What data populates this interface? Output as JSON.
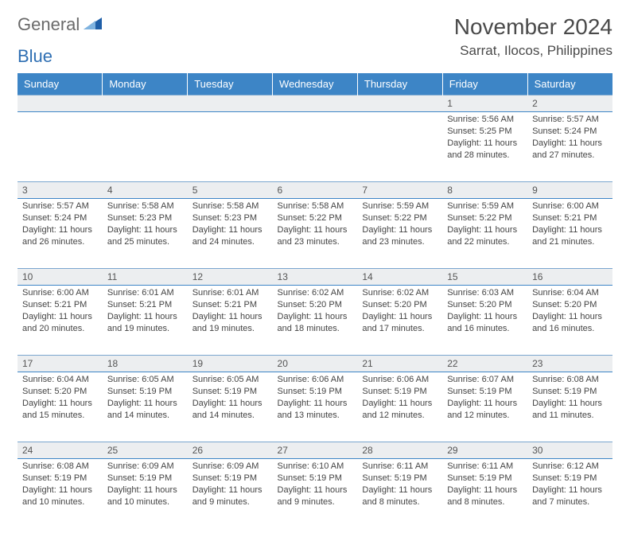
{
  "logo": {
    "word1": "General",
    "word2": "Blue"
  },
  "title": "November 2024",
  "location": "Sarrat, Ilocos, Philippines",
  "colors": {
    "header_bg": "#3d85c6",
    "header_text": "#ffffff",
    "daynum_bg": "#eceef0",
    "row_border": "#3d85c6",
    "logo_gray": "#6a6a6a",
    "logo_blue": "#2f6fb3",
    "logo_tri_light": "#7fb3e0",
    "logo_tri_dark": "#1f5fa8"
  },
  "day_headers": [
    "Sunday",
    "Monday",
    "Tuesday",
    "Wednesday",
    "Thursday",
    "Friday",
    "Saturday"
  ],
  "weeks": [
    [
      null,
      null,
      null,
      null,
      null,
      {
        "n": "1",
        "sr": "5:56 AM",
        "ss": "5:25 PM",
        "dl": "11 hours and 28 minutes."
      },
      {
        "n": "2",
        "sr": "5:57 AM",
        "ss": "5:24 PM",
        "dl": "11 hours and 27 minutes."
      }
    ],
    [
      {
        "n": "3",
        "sr": "5:57 AM",
        "ss": "5:24 PM",
        "dl": "11 hours and 26 minutes."
      },
      {
        "n": "4",
        "sr": "5:58 AM",
        "ss": "5:23 PM",
        "dl": "11 hours and 25 minutes."
      },
      {
        "n": "5",
        "sr": "5:58 AM",
        "ss": "5:23 PM",
        "dl": "11 hours and 24 minutes."
      },
      {
        "n": "6",
        "sr": "5:58 AM",
        "ss": "5:22 PM",
        "dl": "11 hours and 23 minutes."
      },
      {
        "n": "7",
        "sr": "5:59 AM",
        "ss": "5:22 PM",
        "dl": "11 hours and 23 minutes."
      },
      {
        "n": "8",
        "sr": "5:59 AM",
        "ss": "5:22 PM",
        "dl": "11 hours and 22 minutes."
      },
      {
        "n": "9",
        "sr": "6:00 AM",
        "ss": "5:21 PM",
        "dl": "11 hours and 21 minutes."
      }
    ],
    [
      {
        "n": "10",
        "sr": "6:00 AM",
        "ss": "5:21 PM",
        "dl": "11 hours and 20 minutes."
      },
      {
        "n": "11",
        "sr": "6:01 AM",
        "ss": "5:21 PM",
        "dl": "11 hours and 19 minutes."
      },
      {
        "n": "12",
        "sr": "6:01 AM",
        "ss": "5:21 PM",
        "dl": "11 hours and 19 minutes."
      },
      {
        "n": "13",
        "sr": "6:02 AM",
        "ss": "5:20 PM",
        "dl": "11 hours and 18 minutes."
      },
      {
        "n": "14",
        "sr": "6:02 AM",
        "ss": "5:20 PM",
        "dl": "11 hours and 17 minutes."
      },
      {
        "n": "15",
        "sr": "6:03 AM",
        "ss": "5:20 PM",
        "dl": "11 hours and 16 minutes."
      },
      {
        "n": "16",
        "sr": "6:04 AM",
        "ss": "5:20 PM",
        "dl": "11 hours and 16 minutes."
      }
    ],
    [
      {
        "n": "17",
        "sr": "6:04 AM",
        "ss": "5:20 PM",
        "dl": "11 hours and 15 minutes."
      },
      {
        "n": "18",
        "sr": "6:05 AM",
        "ss": "5:19 PM",
        "dl": "11 hours and 14 minutes."
      },
      {
        "n": "19",
        "sr": "6:05 AM",
        "ss": "5:19 PM",
        "dl": "11 hours and 14 minutes."
      },
      {
        "n": "20",
        "sr": "6:06 AM",
        "ss": "5:19 PM",
        "dl": "11 hours and 13 minutes."
      },
      {
        "n": "21",
        "sr": "6:06 AM",
        "ss": "5:19 PM",
        "dl": "11 hours and 12 minutes."
      },
      {
        "n": "22",
        "sr": "6:07 AM",
        "ss": "5:19 PM",
        "dl": "11 hours and 12 minutes."
      },
      {
        "n": "23",
        "sr": "6:08 AM",
        "ss": "5:19 PM",
        "dl": "11 hours and 11 minutes."
      }
    ],
    [
      {
        "n": "24",
        "sr": "6:08 AM",
        "ss": "5:19 PM",
        "dl": "11 hours and 10 minutes."
      },
      {
        "n": "25",
        "sr": "6:09 AM",
        "ss": "5:19 PM",
        "dl": "11 hours and 10 minutes."
      },
      {
        "n": "26",
        "sr": "6:09 AM",
        "ss": "5:19 PM",
        "dl": "11 hours and 9 minutes."
      },
      {
        "n": "27",
        "sr": "6:10 AM",
        "ss": "5:19 PM",
        "dl": "11 hours and 9 minutes."
      },
      {
        "n": "28",
        "sr": "6:11 AM",
        "ss": "5:19 PM",
        "dl": "11 hours and 8 minutes."
      },
      {
        "n": "29",
        "sr": "6:11 AM",
        "ss": "5:19 PM",
        "dl": "11 hours and 8 minutes."
      },
      {
        "n": "30",
        "sr": "6:12 AM",
        "ss": "5:19 PM",
        "dl": "11 hours and 7 minutes."
      }
    ]
  ],
  "labels": {
    "sunrise": "Sunrise: ",
    "sunset": "Sunset: ",
    "daylight": "Daylight: "
  }
}
